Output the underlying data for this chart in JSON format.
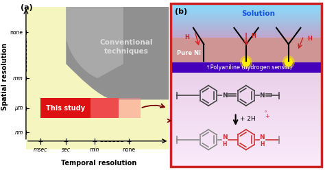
{
  "fig_width": 4.74,
  "fig_height": 2.48,
  "dpi": 100,
  "panel_a": {
    "bg_color": "#f5f5c0",
    "label": "(a)",
    "xlabel": "Temporal resolution",
    "ylabel": "Spatial resolution",
    "x_ticks": [
      "msec",
      "sec",
      "min",
      "none"
    ],
    "y_ticks": [
      "nm",
      "μm",
      "mm",
      "none"
    ],
    "gray_blob_label": "Conventional\ntechniques",
    "gray_blob_label_color": "#dddddd",
    "this_study_color": "#dd1111",
    "this_study_label": "This study",
    "arrow_color": "#880000"
  },
  "panel_b": {
    "border_color": "#cc2222",
    "label": "(b)",
    "solution_color_top": "#88ddff",
    "solution_color_bot": "#aaaacc",
    "solution_text": "Solution",
    "solution_text_color": "#1155dd",
    "ni_bg_color": "#aaaaaa",
    "ni_text": "Pure Ni",
    "polyaniline_color": "#4400bb",
    "polyaniline_text": "↑Polyaniline (hydrogen sensor)",
    "bottom_bg_top": "#ddc8e8",
    "bottom_bg_bot": "#f0e0f0",
    "H_color": "#cc2222",
    "glow_color": "#ffee00"
  }
}
